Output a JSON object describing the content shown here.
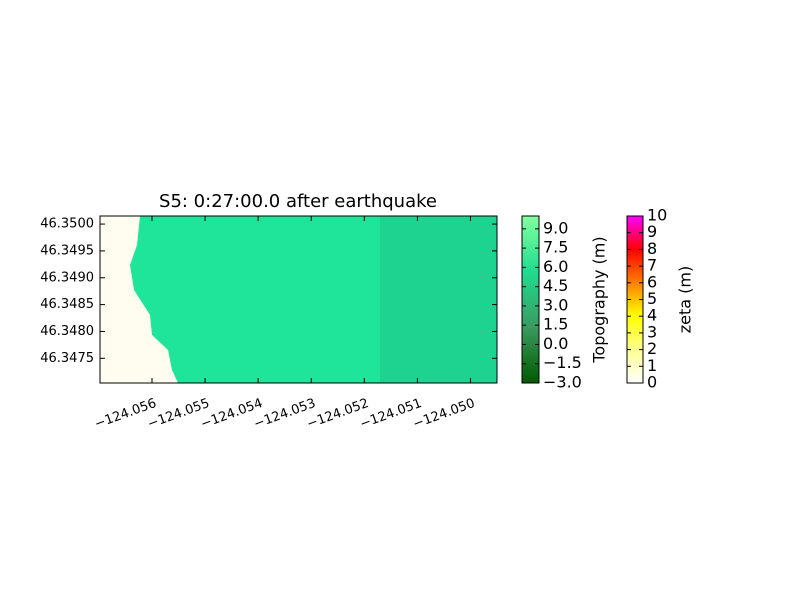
{
  "chart_data": {
    "type": "map",
    "title": "S5: 0:27:00.0 after earthquake",
    "xlim": [
      -124.05698,
      -124.0495
    ],
    "ylim": [
      46.34704,
      46.35015
    ],
    "xticks": [
      {
        "value": -124.056,
        "label": "−124.056"
      },
      {
        "value": -124.055,
        "label": "−124.055"
      },
      {
        "value": -124.054,
        "label": "−124.054"
      },
      {
        "value": -124.053,
        "label": "−124.053"
      },
      {
        "value": -124.052,
        "label": "−124.052"
      },
      {
        "value": -124.051,
        "label": "−124.051"
      },
      {
        "value": -124.05,
        "label": "−124.050"
      }
    ],
    "yticks": [
      {
        "value": 46.3475,
        "label": "46.3475"
      },
      {
        "value": 46.348,
        "label": "46.3480"
      },
      {
        "value": 46.3485,
        "label": "46.3485"
      },
      {
        "value": 46.349,
        "label": "46.3490"
      },
      {
        "value": 46.3495,
        "label": "46.3495"
      },
      {
        "value": 46.35,
        "label": "46.3500"
      }
    ],
    "land_color": "#1fe59a",
    "water_color": "#fffdf0",
    "colorbars": [
      {
        "label": "Topography (m)",
        "lim": [
          -3,
          10
        ],
        "ticks": [
          {
            "value": -3,
            "label": "−3.0"
          },
          {
            "value": -1.5,
            "label": "−1.5"
          },
          {
            "value": 0,
            "label": "0.0"
          },
          1.5,
          {
            "value": 3,
            "label": "3.0"
          },
          4.5,
          {
            "value": 6,
            "label": "6.0"
          },
          7.5,
          {
            "value": 9,
            "label": "9.0"
          }
        ],
        "colors": [
          "#005a00",
          "#3a9a60",
          "#20dc90",
          "#84ffa0"
        ]
      },
      {
        "label": "zeta (m)",
        "lim": [
          0,
          10
        ],
        "ticks": [
          0,
          1,
          2,
          3,
          4,
          5,
          6,
          7,
          8,
          9,
          10
        ],
        "colors": [
          "#ffffff",
          "#ffff90",
          "#ffff00",
          "#ff8000",
          "#ff0000",
          "#ff00ff"
        ]
      }
    ]
  }
}
